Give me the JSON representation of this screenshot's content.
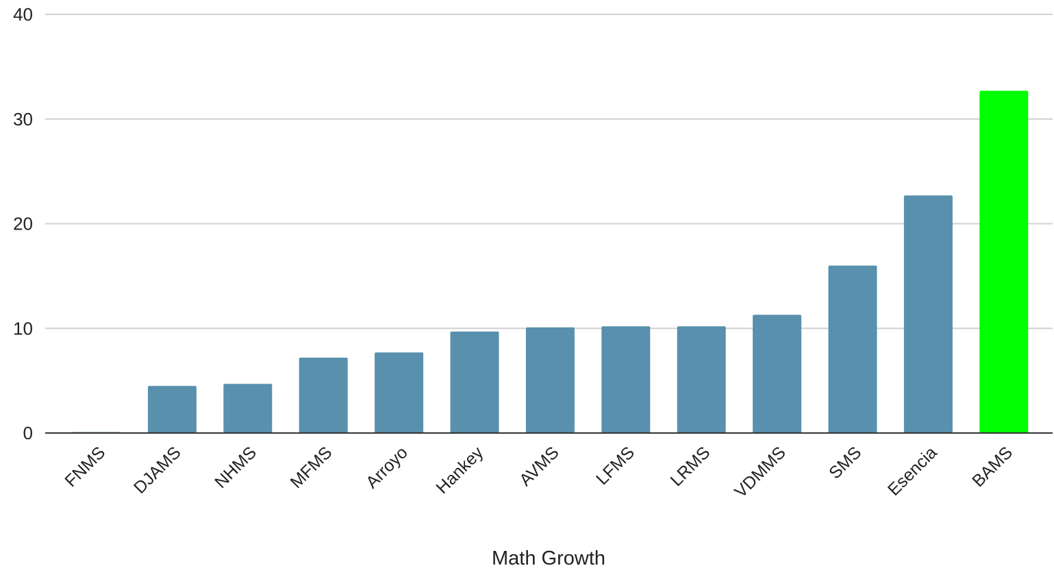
{
  "chart_data": {
    "type": "bar",
    "title": "",
    "xlabel": "Math Growth",
    "ylabel": "",
    "ylim": [
      0,
      40
    ],
    "yticks": [
      0,
      10,
      20,
      30,
      40
    ],
    "grid": true,
    "categories": [
      "FNMS",
      "DJAMS",
      "NHMS",
      "MFMS",
      "Arroyo",
      "Hankey",
      "AVMS",
      "LFMS",
      "LRMS",
      "VDMMS",
      "SMS",
      "Esencia",
      "BAMS"
    ],
    "values": [
      0.1,
      4.5,
      4.7,
      7.2,
      7.7,
      9.7,
      10.1,
      10.2,
      10.2,
      11.3,
      16.0,
      22.7,
      32.7
    ],
    "colors": {
      "default_bar": "#5890ad",
      "highlight_bar": "#00ff00",
      "gridline": "#d0d0d0",
      "baseline": "#333333",
      "text": "#222222"
    },
    "highlight_category": "BAMS"
  }
}
